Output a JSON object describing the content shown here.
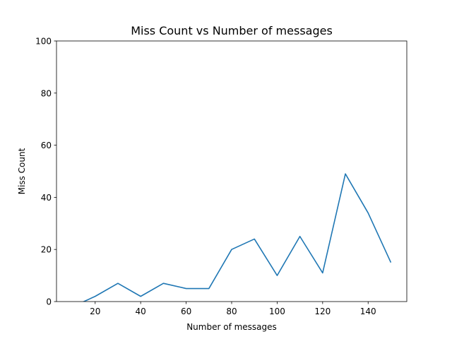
{
  "chart_data": {
    "type": "line",
    "title": "Miss Count vs Number of messages",
    "xlabel": "Number of messages",
    "ylabel": "Miss Count",
    "xlim": [
      3,
      157
    ],
    "ylim": [
      0,
      100
    ],
    "xticks": [
      20,
      40,
      60,
      80,
      100,
      120,
      140
    ],
    "yticks": [
      0,
      20,
      40,
      60,
      80,
      100
    ],
    "grid": false,
    "series": [
      {
        "color": "#1f77b4",
        "x": [
          10,
          20,
          30,
          40,
          50,
          60,
          70,
          80,
          90,
          100,
          110,
          120,
          130,
          140,
          150
        ],
        "y": [
          -2,
          2,
          7,
          2,
          7,
          5,
          5,
          20,
          24,
          10,
          25,
          11,
          49,
          34,
          15
        ]
      }
    ]
  }
}
